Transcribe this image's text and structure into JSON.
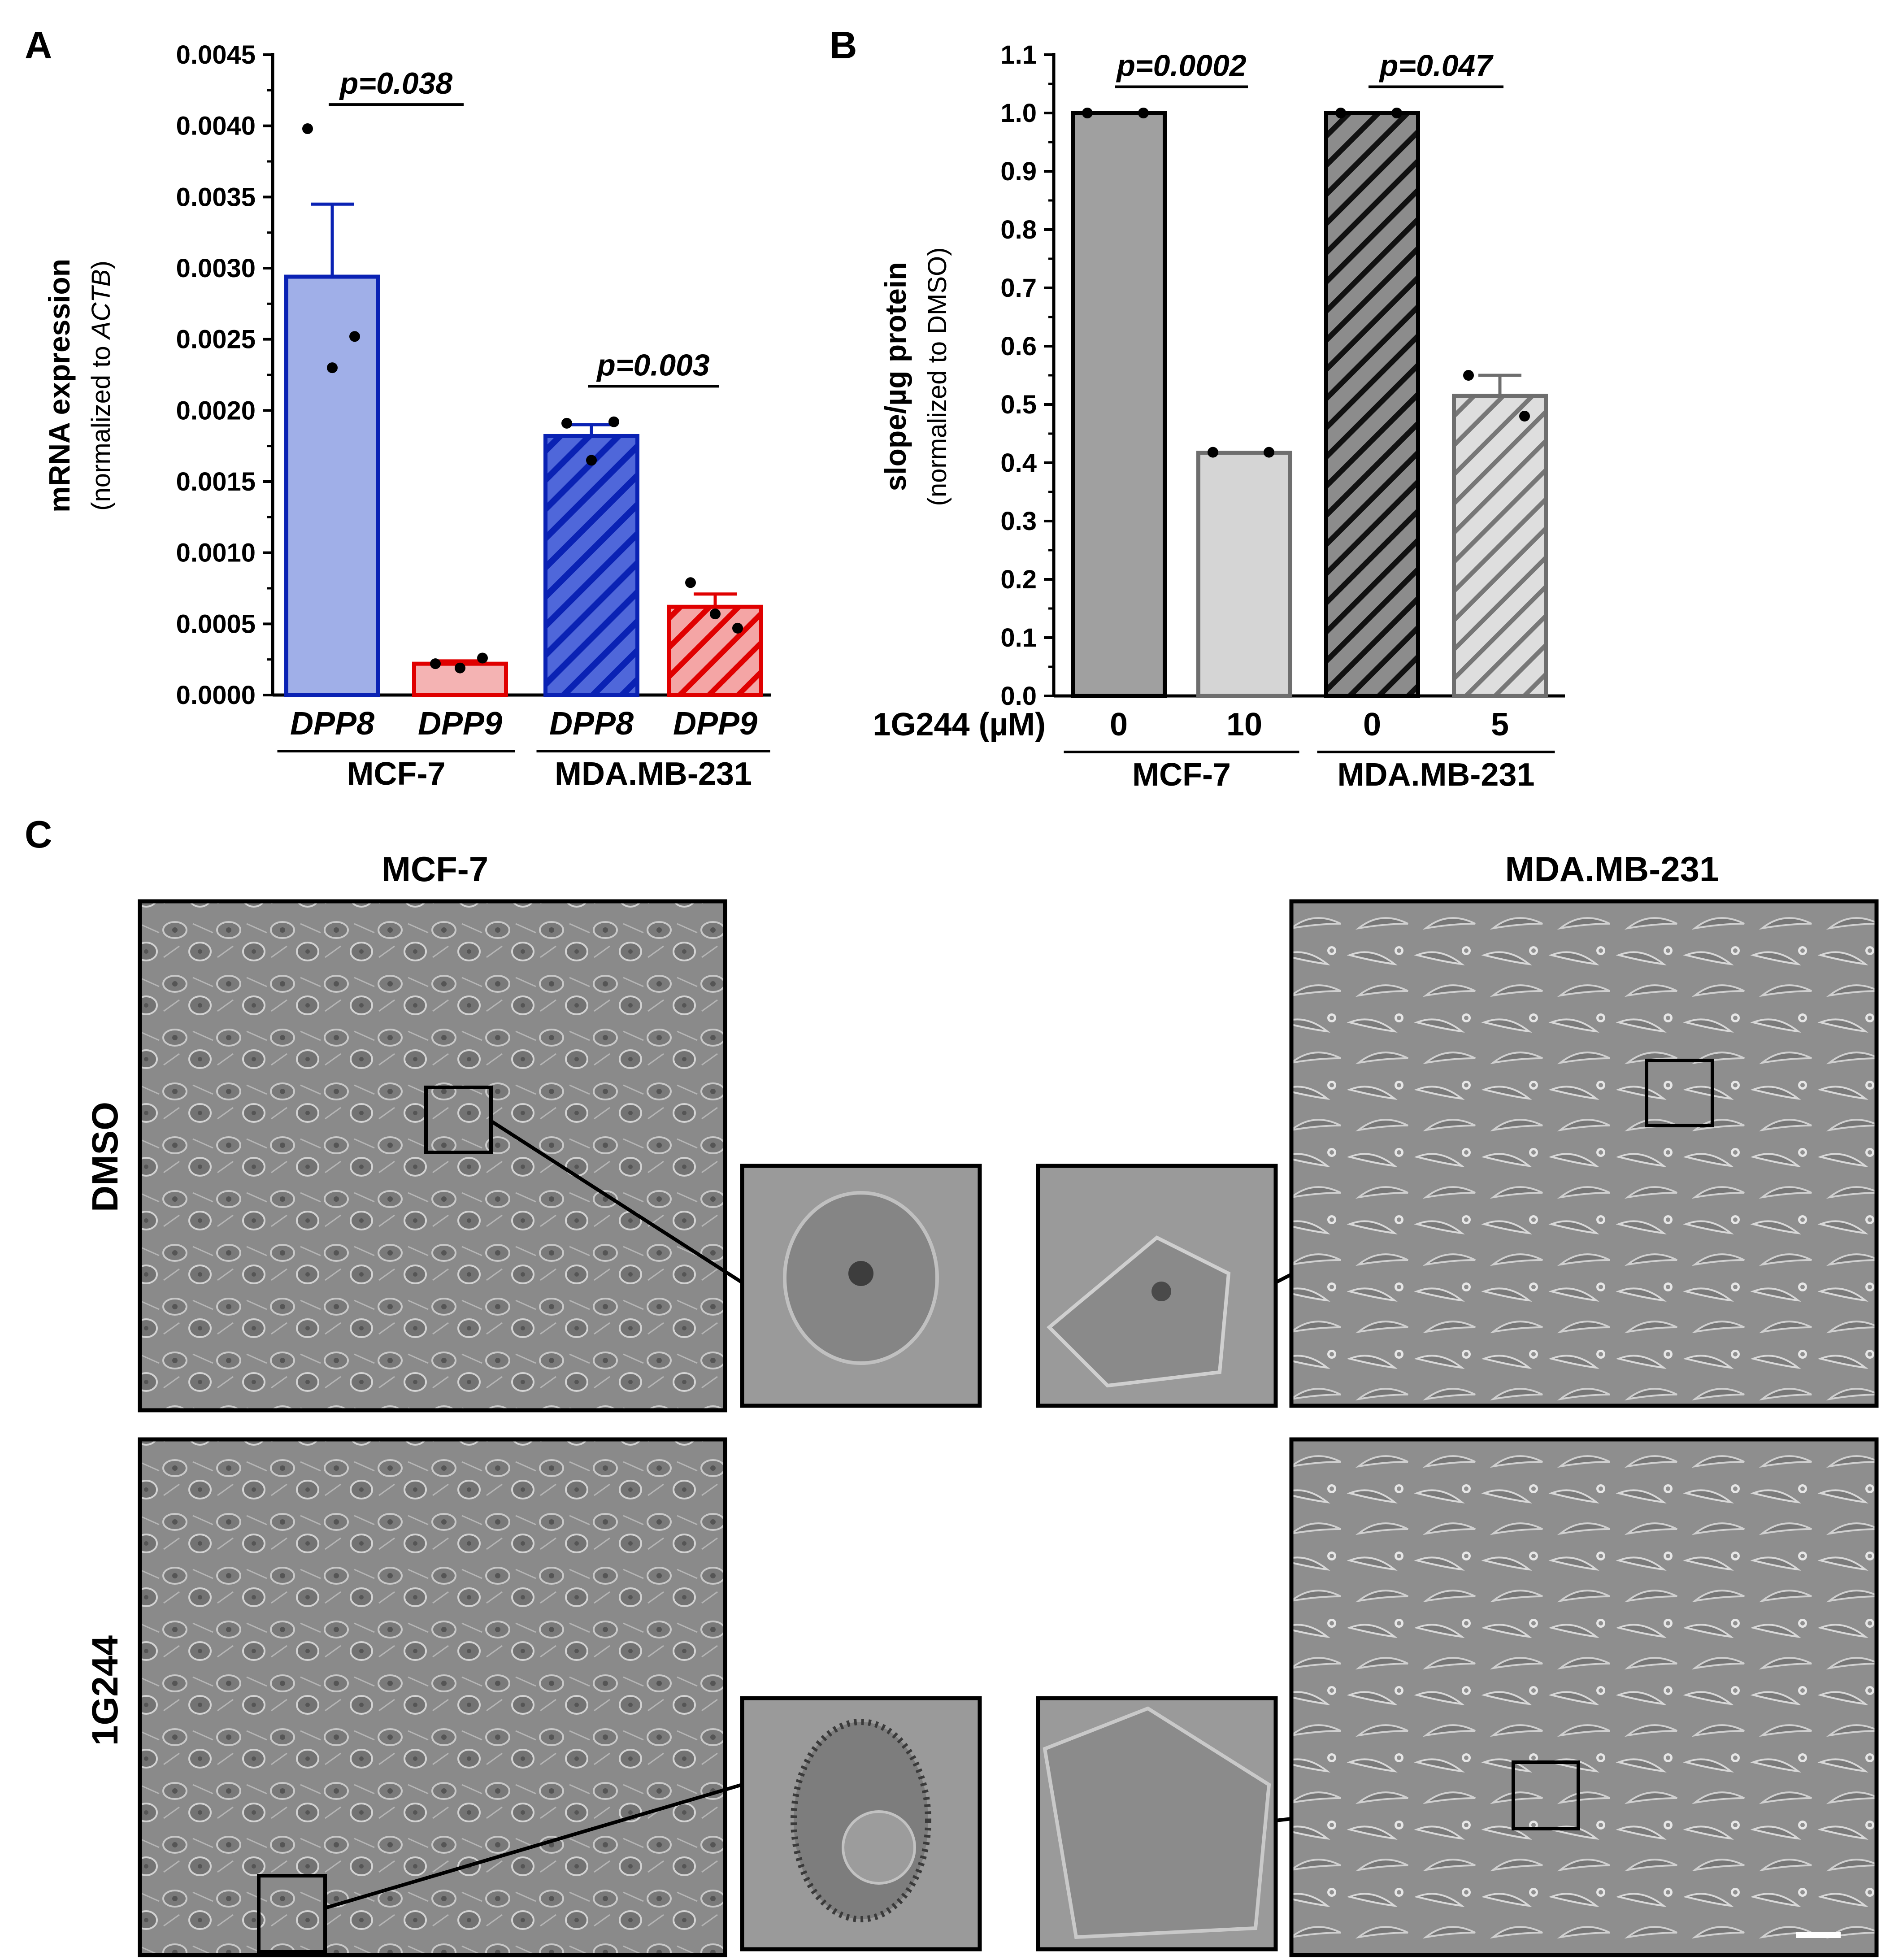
{
  "panels": {
    "A": "A",
    "B": "B",
    "C": "C"
  },
  "chart_data": [
    {
      "type": "bar",
      "panel": "A",
      "ylabel": "mRNA expression",
      "ylabel_sub_prefix": "(normalized to ",
      "ylabel_sub_italic": "ACTB",
      "ylabel_sub_suffix": ")",
      "ylim": [
        0,
        0.0045
      ],
      "yticks": [
        "0.0000",
        "0.0005",
        "0.0010",
        "0.0015",
        "0.0020",
        "0.0025",
        "0.0030",
        "0.0035",
        "0.0040",
        "0.0045"
      ],
      "ytick_values": [
        0,
        0.0005,
        0.001,
        0.0015,
        0.002,
        0.0025,
        0.003,
        0.0035,
        0.004,
        0.0045
      ],
      "categories": [
        "DPP8",
        "DPP9",
        "DPP8",
        "DPP9"
      ],
      "groups": [
        {
          "label": "MCF-7",
          "members": [
            0,
            1
          ]
        },
        {
          "label": "MDA.MB-231",
          "members": [
            2,
            3
          ]
        }
      ],
      "values": [
        0.00294,
        0.00022,
        0.00182,
        0.00062
      ],
      "errors": [
        0.00051,
        2e-05,
        8e-05,
        9e-05
      ],
      "points": [
        [
          0.00398,
          0.00252,
          0.0023
        ],
        [
          0.00022,
          0.00026,
          0.00019
        ],
        [
          0.00191,
          0.00192,
          0.00165
        ],
        [
          0.00079,
          0.00047,
          0.00057
        ]
      ],
      "hatched": [
        false,
        false,
        true,
        true
      ],
      "fill_colors": [
        "#a0afe8",
        "#f4b3b3",
        "#a0afe8",
        "#f4b3b3"
      ],
      "edge_colors": [
        "#0a22b4",
        "#e00000",
        "#0a22b4",
        "#e00000"
      ],
      "significance": [
        {
          "label": "p=0.038",
          "from": 0,
          "to": 1,
          "y": 0.00415
        },
        {
          "label": "p=0.003",
          "from": 2,
          "to": 3,
          "y": 0.00217
        }
      ]
    },
    {
      "type": "bar",
      "panel": "B",
      "ylabel": "slope/µg protein",
      "ylabel_sub": "(normalized to DMSO)",
      "ylim": [
        0,
        1.1
      ],
      "yticks": [
        "0.0",
        "0.1",
        "0.2",
        "0.3",
        "0.4",
        "0.5",
        "0.6",
        "0.7",
        "0.8",
        "0.9",
        "1.0",
        "1.1"
      ],
      "ytick_values": [
        0,
        0.1,
        0.2,
        0.3,
        0.4,
        0.5,
        0.6,
        0.7,
        0.8,
        0.9,
        1.0,
        1.1
      ],
      "xlabel_left": "1G244 (µM)",
      "categories": [
        "0",
        "10",
        "0",
        "5"
      ],
      "groups": [
        {
          "label": "MCF-7",
          "members": [
            0,
            1
          ]
        },
        {
          "label": "MDA.MB-231",
          "members": [
            2,
            3
          ]
        }
      ],
      "values": [
        1.0,
        0.417,
        1.0,
        0.515
      ],
      "errors": [
        0,
        0,
        0,
        0.035
      ],
      "points": [
        [
          1.0,
          1.0
        ],
        [
          0.418,
          0.418
        ],
        [
          1.0,
          1.0
        ],
        [
          0.55,
          0.48
        ]
      ],
      "hatched": [
        false,
        false,
        true,
        true
      ],
      "fill_colors": [
        "#a0a0a0",
        "#d5d5d5",
        "#a0a0a0",
        "#d5d5d5"
      ],
      "edge_colors": [
        "#000000",
        "#6e6e6e",
        "#000000",
        "#6e6e6e"
      ],
      "significance": [
        {
          "label": "p=0.0002",
          "from": 0,
          "to": 1,
          "y": 1.045
        },
        {
          "label": "p=0.047",
          "from": 2,
          "to": 3,
          "y": 1.045
        }
      ]
    }
  ],
  "micrographs": {
    "col_titles": [
      "MCF-7",
      "MDA.MB-231"
    ],
    "row_labels": [
      "DMSO",
      "1G244"
    ]
  }
}
